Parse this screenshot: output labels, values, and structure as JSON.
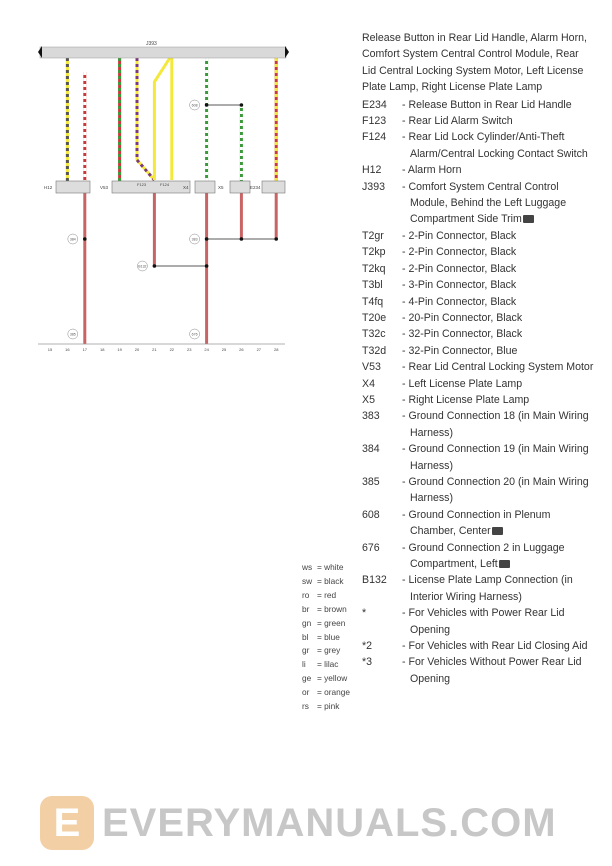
{
  "diagram": {
    "control_unit": "J393",
    "components": [
      "H12",
      "V53",
      "F123",
      "F124",
      "X4",
      "X5",
      "E234"
    ],
    "grounds": [
      "383",
      "384",
      "385",
      "608",
      "676",
      "B132"
    ],
    "column_numbers": [
      "15",
      "16",
      "17",
      "18",
      "19",
      "20",
      "21",
      "22",
      "23",
      "24",
      "25",
      "26",
      "27",
      "28"
    ],
    "wire_colors": {
      "yellow": "#f4e83a",
      "red": "#c8393c",
      "green": "#3a9a3a",
      "white": "#ffffff",
      "lilac": "#7a3a7a",
      "grey_bar": "#d9d9d9",
      "ground_wire": "#c86464"
    }
  },
  "legend": [
    {
      "abbr": "ws",
      "name": "= white"
    },
    {
      "abbr": "sw",
      "name": "= black"
    },
    {
      "abbr": "ro",
      "name": "= red"
    },
    {
      "abbr": "br",
      "name": "= brown"
    },
    {
      "abbr": "gn",
      "name": "= green"
    },
    {
      "abbr": "bl",
      "name": "= blue"
    },
    {
      "abbr": "gr",
      "name": "= grey"
    },
    {
      "abbr": "li",
      "name": "= lilac"
    },
    {
      "abbr": "ge",
      "name": "= yellow"
    },
    {
      "abbr": "or",
      "name": "= orange"
    },
    {
      "abbr": "rs",
      "name": "= pink"
    }
  ],
  "text": {
    "intro": "Release Button in Rear Lid Handle, Alarm Horn, Comfort System Central Control Module, Rear Lid Central Locking System Motor, Left License Plate Lamp, Right License Plate Lamp",
    "items": [
      {
        "code": "E234",
        "desc": "- Release Button in Rear Lid Handle"
      },
      {
        "code": "F123",
        "desc": "- Rear Lid Alarm Switch"
      },
      {
        "code": "F124",
        "desc": "- Rear Lid Lock Cylinder/Anti-Theft Alarm/Central Locking Contact Switch"
      },
      {
        "code": "H12",
        "desc": "- Alarm Horn"
      },
      {
        "code": "J393",
        "desc": "- Comfort System Central Control Module, Behind the Left Luggage Compartment Side Trim",
        "camera": true
      },
      {
        "code": "T2gr",
        "desc": "- 2-Pin Connector, Black"
      },
      {
        "code": "T2kp",
        "desc": "- 2-Pin Connector, Black"
      },
      {
        "code": "T2kq",
        "desc": "- 2-Pin Connector, Black"
      },
      {
        "code": "T3bl",
        "desc": "- 3-Pin Connector, Black"
      },
      {
        "code": "T4fq",
        "desc": "- 4-Pin Connector, Black"
      },
      {
        "code": "T20e",
        "desc": "- 20-Pin Connector, Black"
      },
      {
        "code": "T32c",
        "desc": "- 32-Pin Connector, Black"
      },
      {
        "code": "T32d",
        "desc": "- 32-Pin Connector, Blue"
      },
      {
        "code": "V53",
        "desc": "- Rear Lid Central Locking System Motor"
      },
      {
        "code": "X4",
        "desc": "- Left License Plate Lamp"
      },
      {
        "code": "X5",
        "desc": "- Right License Plate Lamp"
      },
      {
        "code": "383",
        "desc": "- Ground Connection 18 (in Main Wiring Harness)"
      },
      {
        "code": "384",
        "desc": "- Ground Connection 19 (in Main Wiring Harness)"
      },
      {
        "code": "385",
        "desc": "- Ground Connection 20 (in Main Wiring Harness)"
      },
      {
        "code": "608",
        "desc": "- Ground Connection in Plenum Chamber, Center",
        "camera": true
      },
      {
        "code": "676",
        "desc": "- Ground Connection 2 in Luggage Compartment, Left",
        "camera": true
      },
      {
        "code": "B132",
        "desc": "- License Plate Lamp Connection (in Interior Wiring Harness)"
      },
      {
        "code": "*",
        "desc": "- For Vehicles with Power Rear Lid Opening"
      },
      {
        "code": "*2",
        "desc": "- For Vehicles with Rear Lid Closing Aid"
      },
      {
        "code": "*3",
        "desc": "- For Vehicles Without Power Rear Lid Opening"
      }
    ]
  },
  "watermark": {
    "logo_letter": "E",
    "text": "EVERYMANUALS.COM"
  }
}
